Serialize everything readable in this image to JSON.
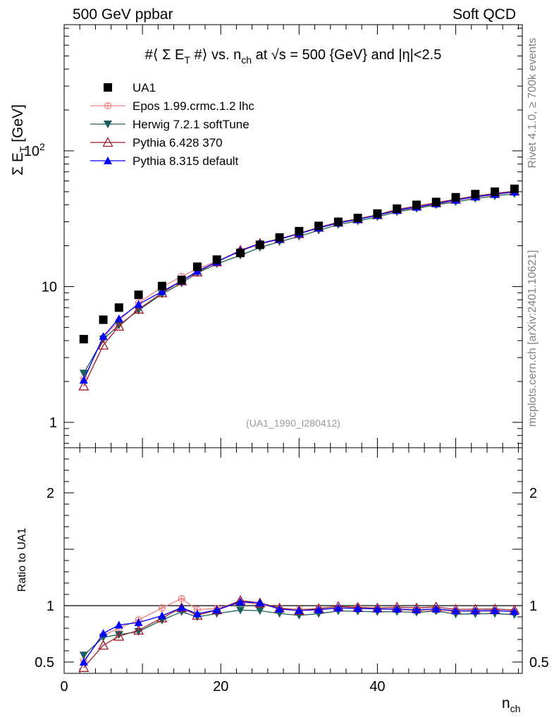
{
  "header": {
    "left": "500 GeV ppbar",
    "right": "Soft QCD"
  },
  "side_labels": {
    "rivet": "Rivet 4.1.0, ≥ 700k events",
    "mcplots": "mcplots.cern.ch [arXiv:2401.10621]"
  },
  "chart_data": {
    "type": "line",
    "title_parts": {
      "prefix": "#⟨ Σ E",
      "sub1": "T",
      "mid1": " #⟩ vs. n",
      "sub2": "ch",
      "mid2": " at √s = 500 {GeV} and |η|<2.5"
    },
    "ylabel_main": {
      "base": "Σ E",
      "sub": "T",
      "unit": " [GeV]"
    },
    "ylabel_ratio": "Ratio to UA1",
    "xlabel": {
      "base": "n",
      "sub": "ch"
    },
    "analysis_tag": "(UA1_1990_I280412)",
    "xlim": [
      0,
      58.5
    ],
    "main_ylim": [
      0.65,
      850
    ],
    "ratio_ylim": [
      0.4,
      2.4
    ],
    "main_ticks": {
      "labels": [
        "1",
        "10"
      ],
      "values": [
        1,
        10
      ],
      "exp_base": "10",
      "exp_power": "2",
      "exp_value": 100
    },
    "ratio_ticks": {
      "labels": [
        "0.5",
        "1",
        "2"
      ],
      "values": [
        0.5,
        1,
        2
      ]
    },
    "x_ticks": {
      "labels": [
        "0",
        "20",
        "40"
      ],
      "values": [
        0,
        20,
        40
      ]
    },
    "x": [
      2.5,
      5,
      7,
      9.5,
      12.5,
      15,
      17,
      19.5,
      22.5,
      25,
      27.5,
      30,
      32.5,
      35,
      37.5,
      40,
      42.5,
      45,
      47.5,
      50,
      52.5,
      55,
      57.5
    ],
    "series": [
      {
        "name": "UA1",
        "style": "data",
        "color": "#000000",
        "marker": "square",
        "values": [
          4.1,
          5.7,
          7.0,
          8.7,
          10.1,
          11.2,
          14.0,
          15.8,
          17.7,
          20.3,
          23.0,
          25.6,
          28.0,
          30.0,
          32.0,
          34.5,
          37.5,
          40.0,
          42.0,
          45.5,
          48.0,
          50.0,
          52.5
        ]
      },
      {
        "name": "Epos 1.99.crmc.1.2 lhc",
        "style": "mc",
        "color": "#f08080",
        "marker": "cross",
        "values": [
          2.1,
          4.2,
          5.6,
          7.6,
          9.9,
          11.9,
          13.5,
          15.4,
          18.3,
          20.5,
          22.5,
          24.8,
          27.2,
          29.2,
          31.6,
          33.5,
          36.2,
          38.3,
          40.2,
          43.2,
          45.6,
          47.6,
          50.0
        ]
      },
      {
        "name": "Herwig 7.2.1 softTune",
        "style": "mc",
        "color": "#1a5e5e",
        "marker": "triangle-down",
        "values": [
          2.3,
          4.1,
          5.2,
          6.7,
          8.8,
          10.6,
          12.6,
          14.7,
          17.0,
          19.4,
          21.4,
          23.4,
          26.0,
          28.6,
          30.4,
          32.6,
          35.5,
          37.6,
          40.0,
          42.1,
          44.5,
          46.5,
          48.3
        ]
      },
      {
        "name": "Pythia 6.428 370",
        "style": "mc",
        "color": "#a01a2a",
        "marker": "triangle-up-open",
        "values": [
          1.85,
          3.7,
          5.1,
          6.8,
          9.0,
          11.0,
          12.8,
          15.2,
          18.5,
          20.8,
          22.5,
          24.5,
          27.3,
          29.8,
          31.5,
          33.8,
          37.0,
          39.2,
          41.5,
          44.0,
          46.5,
          48.5,
          50.5
        ]
      },
      {
        "name": "Pythia 8.315 default",
        "style": "mc",
        "color": "#0000ff",
        "marker": "triangle-up",
        "values": [
          2.05,
          4.3,
          5.8,
          7.4,
          9.2,
          11.0,
          13.0,
          15.2,
          18.3,
          20.8,
          22.3,
          24.5,
          27.0,
          29.4,
          31.2,
          33.5,
          36.4,
          38.5,
          40.8,
          43.4,
          45.8,
          47.8,
          49.8
        ]
      }
    ]
  }
}
